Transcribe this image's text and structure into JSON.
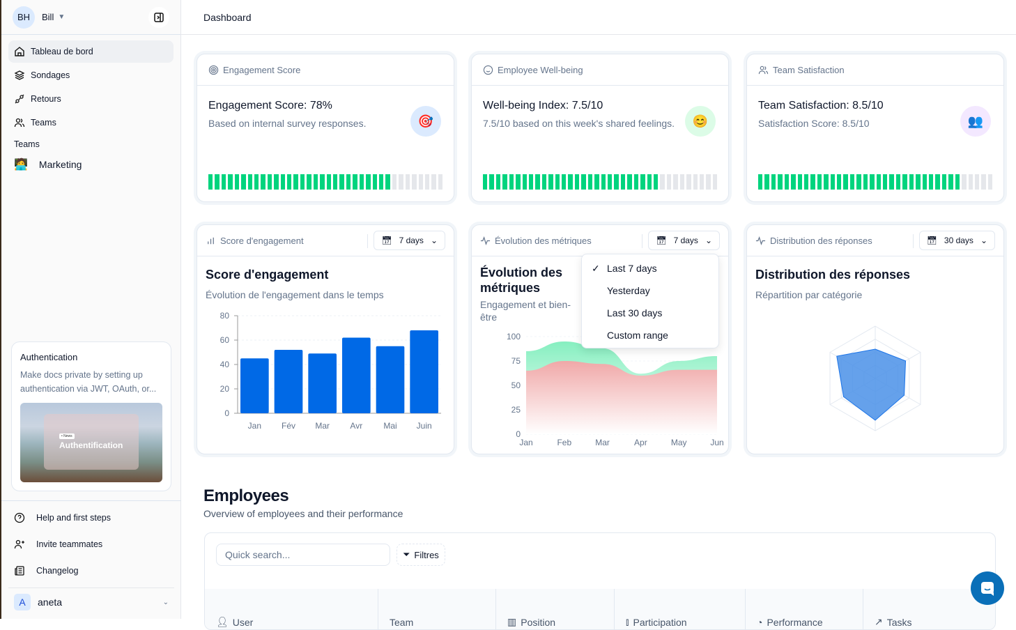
{
  "sidebar": {
    "user": {
      "initials": "BH",
      "name": "Bill"
    },
    "nav": [
      {
        "label": "Tableau de bord",
        "icon": "home-icon",
        "active": true
      },
      {
        "label": "Sondages",
        "icon": "layers-icon"
      },
      {
        "label": "Retours",
        "icon": "plug-icon"
      },
      {
        "label": "Teams",
        "icon": "users-icon"
      }
    ],
    "teams_heading": "Teams",
    "teams": [
      {
        "label": "Marketing",
        "emoji": "🧑‍💻"
      }
    ],
    "promo": {
      "title": "Authentication",
      "text": "Make docs private by setting up authentication via JWT, OAuth, or...",
      "image_tag": "• News",
      "image_title": "Authentification"
    },
    "bottom": [
      {
        "label": "Help and first steps",
        "icon": "help-circle-icon"
      },
      {
        "label": "Invite teammates",
        "icon": "user-plus-icon"
      },
      {
        "label": "Changelog",
        "icon": "newspaper-icon"
      }
    ],
    "account": {
      "initial": "A",
      "name": "aneta"
    }
  },
  "header": {
    "title": "Dashboard"
  },
  "stats": [
    {
      "header": "Engagement Score",
      "title": "Engagement Score: 78%",
      "sub": "Based on internal survey responses.",
      "emoji": "🎯",
      "progress": 78,
      "icon_bg": "#dbeafe"
    },
    {
      "header": "Employee Well-being",
      "title": "Well-being Index: 7.5/10",
      "sub": "7.5/10 based on this week's shared feelings.",
      "emoji": "😊",
      "progress": 75,
      "icon_bg": "#dcfce7"
    },
    {
      "header": "Team Satisfaction",
      "title": "Team Satisfaction: 8.5/10",
      "sub": "Satisfaction Score: 8.5/10",
      "emoji": "👥",
      "progress": 85,
      "icon_bg": "#f3e8ff"
    }
  ],
  "colors": {
    "progress_on": "#00d47e",
    "progress_off": "#e5e7eb",
    "bar": "#0069e6",
    "area_green": "#86efc0",
    "area_red": "#f0a8a8",
    "radar": "#4a90e8"
  },
  "charts": [
    {
      "header": "Score d'engagement",
      "range": "7 days",
      "title": "Score d'engagement",
      "sub": "Évolution de l'engagement dans le temps"
    },
    {
      "header": "Évolution des métriques",
      "range": "7 days",
      "title": "Évolution des métriques",
      "sub": "Engagement et bien-être"
    },
    {
      "header": "Distribution des réponses",
      "range": "30 days",
      "title": "Distribution des réponses",
      "sub": "Répartition par catégorie"
    }
  ],
  "dropdown": {
    "items": [
      "Last 7 days",
      "Yesterday",
      "Last 30 days",
      "Custom range"
    ],
    "selected": "Last 7 days"
  },
  "chart_data": [
    {
      "type": "bar",
      "categories": [
        "Jan",
        "Fév",
        "Mar",
        "Avr",
        "Mai",
        "Juin"
      ],
      "values": [
        45,
        52,
        49,
        62,
        55,
        68
      ],
      "ylim": [
        0,
        80
      ],
      "yticks": [
        "0",
        "20",
        "40",
        "60",
        "80"
      ],
      "grid": true
    },
    {
      "type": "area",
      "categories": [
        "Jan",
        "Feb",
        "Mar",
        "Apr",
        "May",
        "Jun"
      ],
      "series": [
        {
          "values": [
            85,
            95,
            88,
            62,
            75,
            80
          ]
        },
        {
          "values": [
            65,
            75,
            72,
            60,
            66,
            66
          ]
        }
      ],
      "ylim": [
        0,
        100
      ],
      "yticks": [
        "0",
        "25",
        "50",
        "75",
        "100"
      ],
      "grid": true
    },
    {
      "type": "radar",
      "axes": 6,
      "values": [
        56,
        67,
        64,
        80,
        70,
        85
      ],
      "rmax": 100
    }
  ],
  "employees": {
    "title": "Employees",
    "sub": "Overview of employees and their performance",
    "search_placeholder": "Quick search...",
    "filter_label": "Filtres",
    "columns": [
      {
        "label": "User",
        "icon": "users-icon"
      },
      {
        "label": "Team",
        "icon": ""
      },
      {
        "label": "Position",
        "icon": "briefcase-icon"
      },
      {
        "label": "Participation",
        "icon": "bar-chart-icon"
      },
      {
        "label": "Performance",
        "icon": "pie-chart-icon"
      },
      {
        "label": "Tasks",
        "icon": "trending-up-icon"
      }
    ]
  }
}
